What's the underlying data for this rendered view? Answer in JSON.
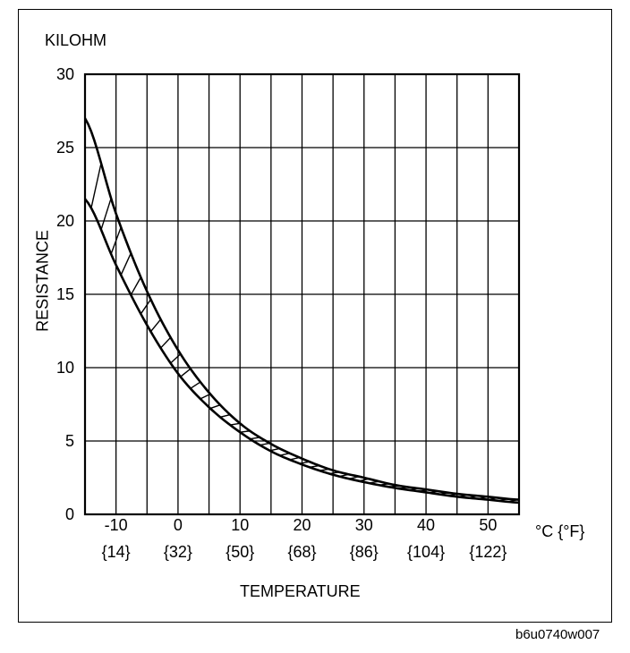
{
  "figure_id": "b6u0740w007",
  "chart_data": {
    "type": "area",
    "title": "",
    "ylabel": "RESISTANCE",
    "y_unit": "KILOHM",
    "xlabel": "TEMPERATURE",
    "x_unit": "°C {°F}",
    "xlim": [
      -15,
      55
    ],
    "ylim": [
      0,
      30
    ],
    "grid": true,
    "x_ticks": [
      {
        "value": -10,
        "label": "-10",
        "sublabel": "{14}"
      },
      {
        "value": 0,
        "label": "0",
        "sublabel": "{32}"
      },
      {
        "value": 10,
        "label": "10",
        "sublabel": "{50}"
      },
      {
        "value": 20,
        "label": "20",
        "sublabel": "{68}"
      },
      {
        "value": 30,
        "label": "30",
        "sublabel": "{86}"
      },
      {
        "value": 40,
        "label": "40",
        "sublabel": "{104}"
      },
      {
        "value": 50,
        "label": "50",
        "sublabel": "{122}"
      }
    ],
    "x_grid": [
      -15,
      -10,
      -5,
      0,
      5,
      10,
      15,
      20,
      25,
      30,
      35,
      40,
      45,
      50,
      55
    ],
    "y_ticks": [
      0,
      5,
      10,
      15,
      20,
      25,
      30
    ],
    "band": {
      "upper": {
        "x": [
          -15,
          -10,
          -5,
          0,
          5,
          10,
          15,
          20,
          25,
          30,
          35,
          40,
          45,
          50,
          55
        ],
        "y": [
          27,
          20.5,
          15.2,
          11.2,
          8.3,
          6.2,
          4.8,
          3.8,
          3.0,
          2.5,
          2.0,
          1.7,
          1.4,
          1.2,
          1.0
        ]
      },
      "lower": {
        "x": [
          -15,
          -10,
          -5,
          0,
          5,
          10,
          15,
          20,
          25,
          30,
          35,
          40,
          45,
          50,
          55
        ],
        "y": [
          21.5,
          17.0,
          12.9,
          9.6,
          7.3,
          5.6,
          4.3,
          3.4,
          2.7,
          2.2,
          1.8,
          1.5,
          1.2,
          1.0,
          0.8
        ]
      }
    }
  }
}
